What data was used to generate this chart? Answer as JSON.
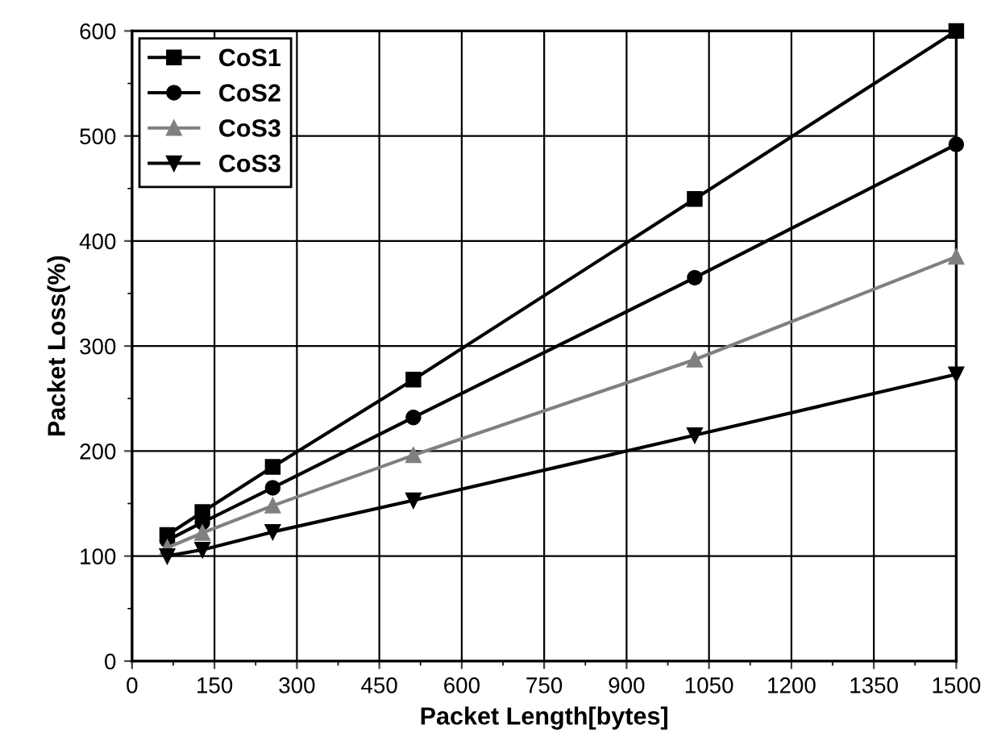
{
  "chart_data": {
    "type": "line",
    "xlabel": "Packet Length[bytes]",
    "ylabel": "Packet Loss(%)",
    "x": [
      64,
      128,
      256,
      512,
      1024,
      1500
    ],
    "series": [
      {
        "name": "CoS1",
        "color": "#000000",
        "marker": "square",
        "values": [
          120,
          142,
          185,
          268,
          440,
          600
        ]
      },
      {
        "name": "CoS2",
        "color": "#000000",
        "marker": "circle",
        "values": [
          115,
          132,
          165,
          232,
          365,
          492
        ]
      },
      {
        "name": "CoS3",
        "color": "#808080",
        "marker": "triangle",
        "values": [
          108,
          122,
          148,
          196,
          287,
          385
        ]
      },
      {
        "name": "CoS3",
        "color": "#000000",
        "marker": "triangle_down",
        "values": [
          100,
          106,
          123,
          153,
          215,
          273
        ]
      }
    ],
    "xlim": [
      0,
      1500
    ],
    "ylim": [
      0,
      600
    ],
    "xticks": [
      0,
      150,
      300,
      450,
      600,
      750,
      900,
      1050,
      1200,
      1350,
      1500
    ],
    "yticks": [
      0,
      100,
      200,
      300,
      400,
      500,
      600
    ],
    "grid": true,
    "legend": "top left",
    "line_style": "solid"
  }
}
